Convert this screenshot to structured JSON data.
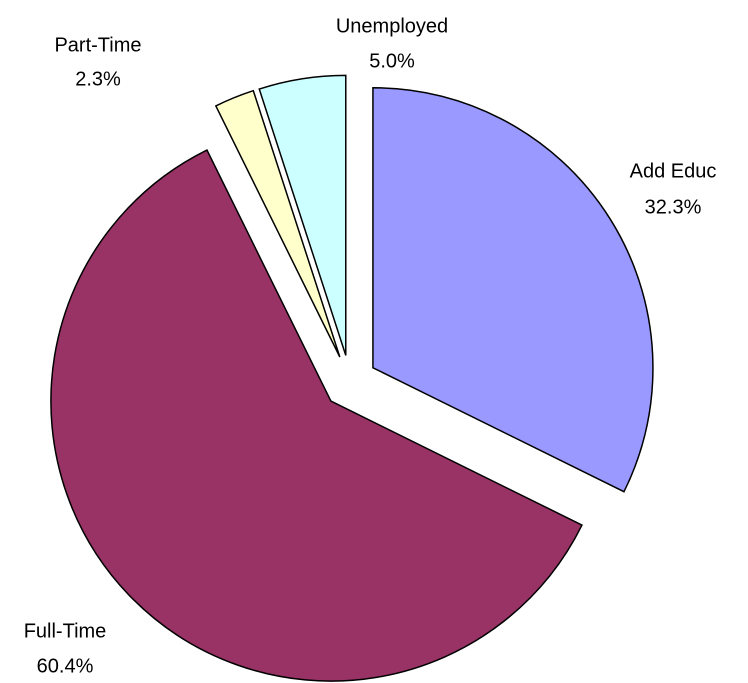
{
  "chart_data": {
    "type": "pie",
    "categories": [
      "Add Educ",
      "Full-Time",
      "Part-Time",
      "Unemployed"
    ],
    "values": [
      32.3,
      60.4,
      2.3,
      5.0
    ],
    "value_labels": [
      "32.3%",
      "60.4%",
      "2.3%",
      "5.0%"
    ],
    "colors": [
      "#9999ff",
      "#993366",
      "#ffffcc",
      "#ccffff"
    ]
  }
}
